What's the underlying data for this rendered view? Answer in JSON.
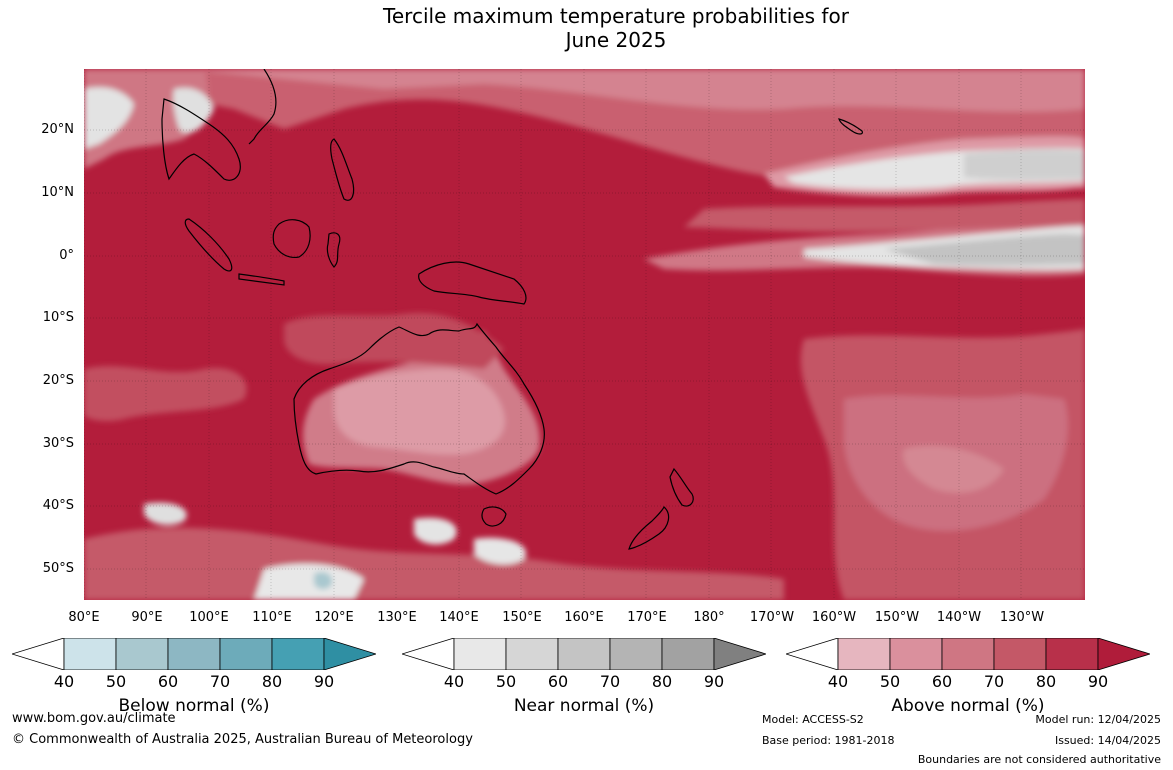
{
  "title_line1": "Tercile maximum temperature probabilities for",
  "title_line2": "June 2025",
  "lat_labels": [
    "20°N",
    "10°N",
    "0°",
    "10°S",
    "20°S",
    "30°S",
    "40°S",
    "50°S"
  ],
  "lon_labels": [
    "80°E",
    "90°E",
    "100°E",
    "110°E",
    "120°E",
    "130°E",
    "140°E",
    "150°E",
    "160°E",
    "170°E",
    "180°",
    "170°W",
    "160°W",
    "150°W",
    "140°W",
    "130°W"
  ],
  "colorbars": [
    {
      "label": "Below normal (%)",
      "ticks": [
        "40",
        "50",
        "60",
        "70",
        "80",
        "90"
      ],
      "colors": [
        "#cde3ea",
        "#a9c8cf",
        "#8db7c3",
        "#6dabba",
        "#45a0b3",
        "#2f8fa3"
      ]
    },
    {
      "label": "Near normal (%)",
      "ticks": [
        "40",
        "50",
        "60",
        "70",
        "80",
        "90"
      ],
      "colors": [
        "#e8e8e8",
        "#d6d6d6",
        "#c4c4c4",
        "#b4b4b4",
        "#a2a2a2",
        "#808080"
      ]
    },
    {
      "label": "Above normal (%)",
      "ticks": [
        "40",
        "50",
        "60",
        "70",
        "80",
        "90"
      ],
      "colors": [
        "#e6b6bf",
        "#da909d",
        "#cf7683",
        "#c45867",
        "#b8304a",
        "#b01c3a"
      ]
    }
  ],
  "footer": {
    "website": "www.bom.gov.au/climate",
    "copyright": "© Commonwealth of Australia 2025, Australian Bureau of Meteorology",
    "model": "Model: ACCESS-S2",
    "base_period": "Base period: 1981-2018",
    "model_run": "Model run: 12/04/2025",
    "issued": "Issued: 14/04/2025",
    "boundaries": "Boundaries are not considered authoritative"
  }
}
